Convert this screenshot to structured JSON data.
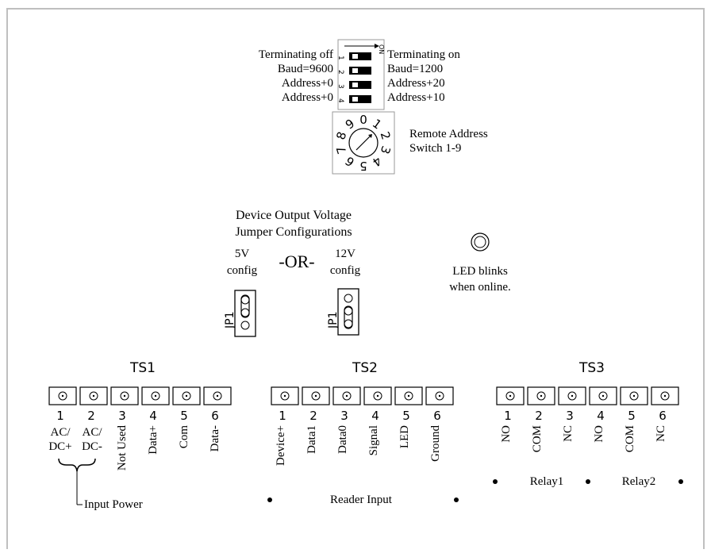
{
  "dip_switch": {
    "on_label": "ON",
    "numbers": [
      "1",
      "2",
      "3",
      "4"
    ],
    "left_labels": [
      "Terminating off",
      "Baud=9600",
      "Address+0",
      "Address+0"
    ],
    "right_labels": [
      "Terminating on",
      "Baud=1200",
      "Address+20",
      "Address+10"
    ]
  },
  "rotary_switch": {
    "digits": [
      "0",
      "1",
      "2",
      "3",
      "4",
      "5",
      "6",
      "7",
      "8",
      "9"
    ],
    "label_line1": "Remote Address",
    "label_line2": "Switch 1-9"
  },
  "jumper_section": {
    "title_line1": "Device Output Voltage",
    "title_line2": "Jumper Configurations",
    "left_config_line1": "5V",
    "left_config_line2": "config",
    "separator": "-OR-",
    "right_config_line1": "12V",
    "right_config_line2": "config",
    "jumper_label": "JP1"
  },
  "led": {
    "label_line1": "LED blinks",
    "label_line2": "when online."
  },
  "terminals": {
    "ts1": {
      "title": "TS1",
      "numbers": [
        "1",
        "2",
        "3",
        "4",
        "5",
        "6"
      ],
      "labels": [
        "AC/ DC+",
        "AC/ DC-",
        "Not Used",
        "Data+",
        "Com",
        "Data-"
      ],
      "bracket_label": "Input Power"
    },
    "ts2": {
      "title": "TS2",
      "numbers": [
        "1",
        "2",
        "3",
        "4",
        "5",
        "6"
      ],
      "labels": [
        "Device+",
        "Data1",
        "Data0",
        "Signal",
        "LED",
        "Ground"
      ],
      "group_label": "Reader Input"
    },
    "ts3": {
      "title": "TS3",
      "numbers": [
        "1",
        "2",
        "3",
        "4",
        "5",
        "6"
      ],
      "labels": [
        "NO",
        "COM",
        "NC",
        "NO",
        "COM",
        "NC"
      ],
      "group_label_1": "Relay1",
      "group_label_2": "Relay2"
    }
  }
}
